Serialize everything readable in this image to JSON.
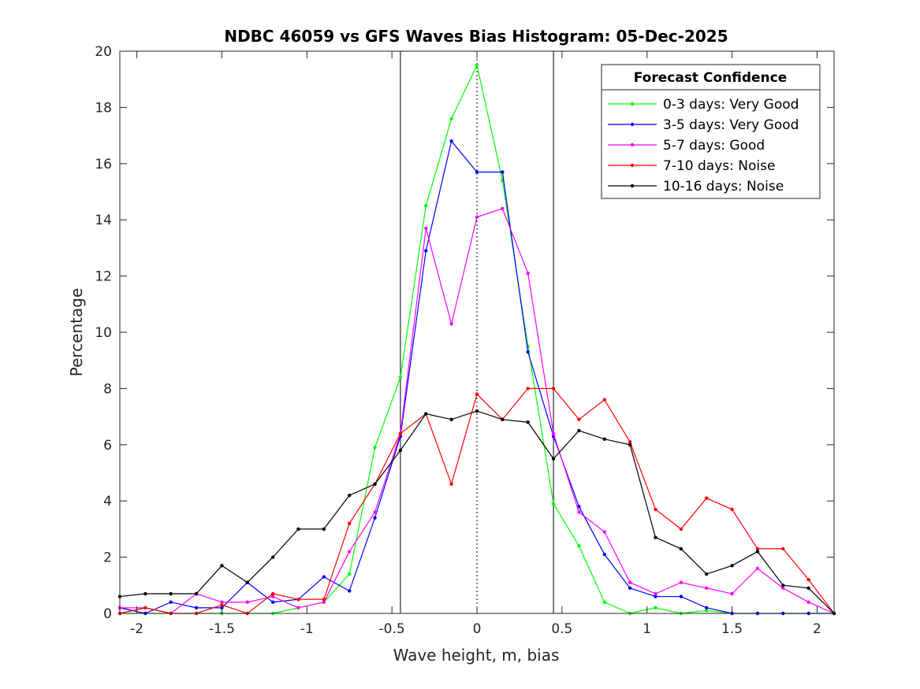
{
  "chart_data": {
    "type": "line",
    "title": "NDBC 46059 vs GFS Waves Bias Histogram: 05-Dec-2025",
    "xlabel": "Wave height, m, bias",
    "ylabel": "Percentage",
    "xlim": [
      -2.1,
      2.1
    ],
    "ylim": [
      0,
      20
    ],
    "xticks": [
      -2,
      -1.5,
      -1,
      -0.5,
      0,
      0.5,
      1,
      1.5,
      2
    ],
    "xtick_labels": [
      "-2",
      "-1.5",
      "-1",
      "-0.5",
      "0",
      "0.5",
      "1",
      "1.5",
      "2"
    ],
    "yticks": [
      0,
      2,
      4,
      6,
      8,
      10,
      12,
      14,
      16,
      18,
      20
    ],
    "ytick_labels": [
      "0",
      "2",
      "4",
      "6",
      "8",
      "10",
      "12",
      "14",
      "16",
      "18",
      "20"
    ],
    "reference_lines": [
      {
        "x": -0.45,
        "style": "solid",
        "color": "#000000"
      },
      {
        "x": 0,
        "style": "dotted",
        "color": "#000000"
      },
      {
        "x": 0.45,
        "style": "solid",
        "color": "#000000"
      }
    ],
    "legend": {
      "title": "Forecast Confidence",
      "position": "top-right"
    },
    "x": [
      -2.1,
      -1.95,
      -1.8,
      -1.65,
      -1.5,
      -1.35,
      -1.2,
      -1.05,
      -0.9,
      -0.75,
      -0.6,
      -0.45,
      -0.3,
      -0.15,
      0,
      0.15,
      0.3,
      0.45,
      0.6,
      0.75,
      0.9,
      1.05,
      1.2,
      1.35,
      1.5,
      1.65,
      1.8,
      1.95,
      2.1
    ],
    "series": [
      {
        "name": "0-3 days: Very Good",
        "color": "#00ff00",
        "values": [
          0,
          0,
          0,
          0,
          0,
          0,
          0,
          0.2,
          0.4,
          1.4,
          5.9,
          8.4,
          14.5,
          17.6,
          19.5,
          15.4,
          9.5,
          3.9,
          2.4,
          0.4,
          0,
          0.2,
          0,
          0.1,
          0,
          0,
          0,
          0,
          0
        ]
      },
      {
        "name": "3-5 days: Very Good",
        "color": "#0000ff",
        "values": [
          0.2,
          0,
          0.4,
          0.2,
          0.2,
          1.1,
          0.4,
          0.5,
          1.3,
          0.8,
          3.4,
          6.3,
          12.9,
          16.8,
          15.7,
          15.7,
          9.3,
          6.3,
          3.8,
          2.1,
          0.9,
          0.6,
          0.6,
          0.2,
          0,
          0,
          0,
          0,
          0
        ]
      },
      {
        "name": "5-7 days: Good",
        "color": "#ff00ff",
        "values": [
          0.2,
          0.2,
          0,
          0.7,
          0.4,
          0.4,
          0.6,
          0.2,
          0.4,
          2.2,
          3.6,
          6.4,
          13.7,
          10.3,
          14.1,
          14.4,
          12.1,
          6.4,
          3.6,
          2.9,
          1.1,
          0.7,
          1.1,
          0.9,
          0.7,
          1.6,
          0.9,
          0.4,
          0
        ]
      },
      {
        "name": "7-10 days: Noise",
        "color": "#ff0000",
        "values": [
          0,
          0.2,
          0,
          0,
          0.3,
          0,
          0.7,
          0.5,
          0.5,
          3.2,
          4.6,
          6.4,
          7.1,
          4.6,
          7.8,
          6.9,
          8,
          8,
          6.9,
          7.6,
          6.1,
          3.7,
          3,
          4.1,
          3.7,
          2.3,
          2.3,
          1.2,
          0
        ]
      },
      {
        "name": "10-16 days: Noise",
        "color": "#000000",
        "values": [
          0.6,
          0.7,
          0.7,
          0.7,
          1.7,
          1.1,
          2,
          3,
          3,
          4.2,
          4.6,
          5.8,
          7.1,
          6.9,
          7.2,
          6.9,
          6.8,
          5.5,
          6.5,
          6.2,
          6,
          2.7,
          2.3,
          1.4,
          1.7,
          2.2,
          1,
          0.9,
          0
        ]
      }
    ]
  }
}
